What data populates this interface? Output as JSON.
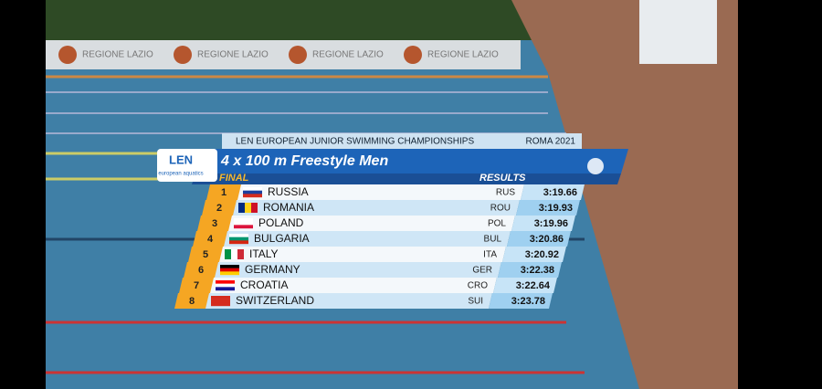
{
  "banner": [
    "REGIONE LAZIO",
    "REGIONE LAZIO",
    "REGIONE LAZIO",
    "REGIONE LAZIO"
  ],
  "graphic": {
    "event": "LEN EUROPEAN JUNIOR SWIMMING CHAMPIONSHIPS",
    "venue": "ROMA 2021",
    "logo": {
      "name": "LEN",
      "tagline": "european aquatics"
    },
    "title": "4 x 100 m Freestyle Men",
    "round": "FINAL",
    "results_label": "RESULTS",
    "rows": [
      {
        "rank": 1,
        "country": "RUSSIA",
        "code": "RUS",
        "time": "3:19.66"
      },
      {
        "rank": 2,
        "country": "ROMANIA",
        "code": "ROU",
        "time": "3:19.93"
      },
      {
        "rank": 3,
        "country": "POLAND",
        "code": "POL",
        "time": "3:19.96"
      },
      {
        "rank": 4,
        "country": "BULGARIA",
        "code": "BUL",
        "time": "3:20.86"
      },
      {
        "rank": 5,
        "country": "ITALY",
        "code": "ITA",
        "time": "3:20.92"
      },
      {
        "rank": 6,
        "country": "GERMANY",
        "code": "GER",
        "time": "3:22.38"
      },
      {
        "rank": 7,
        "country": "CROATIA",
        "code": "CRO",
        "time": "3:22.64"
      },
      {
        "rank": 8,
        "country": "SWITZERLAND",
        "code": "SUI",
        "time": "3:23.78"
      }
    ]
  }
}
